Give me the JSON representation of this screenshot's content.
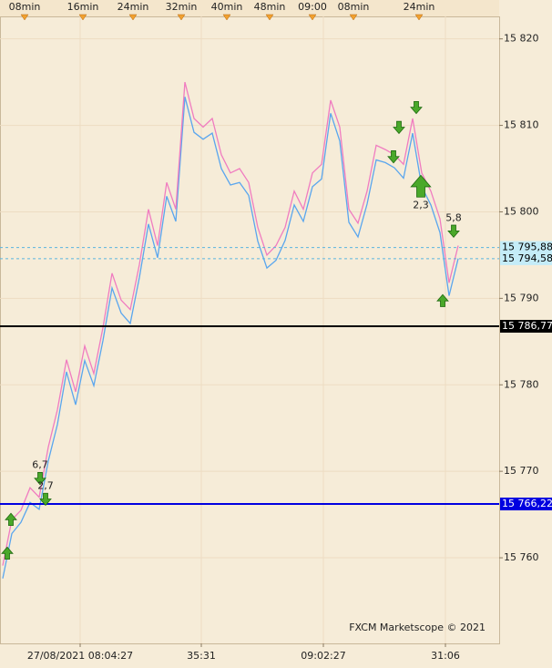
{
  "chart_data": {
    "type": "line",
    "x": [
      0,
      1,
      2,
      3,
      4,
      5,
      6,
      7,
      8,
      9,
      10,
      11,
      12,
      13,
      14,
      15,
      16,
      17,
      18,
      19,
      20,
      21,
      22,
      23,
      24,
      25,
      26,
      27,
      28,
      29,
      30,
      31,
      32,
      33,
      34,
      35,
      36,
      37,
      38,
      39,
      40,
      41,
      42,
      43,
      44,
      45,
      46,
      47,
      48,
      49,
      50
    ],
    "xlim": [
      -0.3,
      54.5
    ],
    "series": [
      {
        "color": "#f07cc0",
        "values": [
          15759.1,
          15764.4,
          15765.5,
          15768.1,
          15767,
          15772.8,
          15777.1,
          15782.9,
          15779.2,
          15784.5,
          15781.3,
          15786.6,
          15792.9,
          15789.8,
          15788.7,
          15793.9,
          15800.3,
          15796.1,
          15803.4,
          15800.3,
          15815,
          15810.8,
          15809.8,
          15810.8,
          15806.6,
          15804.5,
          15805,
          15803.4,
          15798.2,
          15795,
          15796.1,
          15798.2,
          15802.4,
          15800.3,
          15804.5,
          15805.5,
          15812.9,
          15809.8,
          15800.3,
          15798.7,
          15802.4,
          15807.7,
          15807.2,
          15806.6,
          15805.5,
          15810.8,
          15804.5,
          15802.4,
          15799.2,
          15791.8,
          15796.1
        ]
      },
      {
        "color": "#5aa6ee",
        "values": [
          15757.6,
          15762.8,
          15764.1,
          15766.4,
          15765.6,
          15771.2,
          15775.4,
          15781.5,
          15777.7,
          15782.8,
          15779.9,
          15785.1,
          15791.2,
          15788.3,
          15787.1,
          15792.4,
          15798.6,
          15794.7,
          15801.8,
          15798.9,
          15813.3,
          15809.2,
          15808.4,
          15809.1,
          15805,
          15803.1,
          15803.4,
          15801.9,
          15796.6,
          15793.5,
          15794.4,
          15796.7,
          15800.8,
          15798.9,
          15802.9,
          15803.8,
          15811.4,
          15808.2,
          15798.8,
          15797.1,
          15800.9,
          15806,
          15805.7,
          15805.1,
          15803.9,
          15809.1,
          15802.9,
          15800.8,
          15797.6,
          15790.3,
          15794.6
        ]
      }
    ],
    "ylim": [
      15750.1,
      15822.6
    ],
    "yticks": [
      {
        "value": 15760,
        "label": "15 760"
      },
      {
        "value": 15770,
        "label": "15 770"
      },
      {
        "value": 15780,
        "label": "15 780"
      },
      {
        "value": 15790,
        "label": "15 790"
      },
      {
        "value": 15800,
        "label": "15 800"
      },
      {
        "value": 15810,
        "label": "15 810"
      },
      {
        "value": 15820,
        "label": "15 820"
      }
    ],
    "top_ticks": [
      {
        "value": 2.4,
        "label": "08min"
      },
      {
        "value": 8.8,
        "label": "16min"
      },
      {
        "value": 14.3,
        "label": "24min"
      },
      {
        "value": 19.6,
        "label": "32min"
      },
      {
        "value": 24.6,
        "label": "40min"
      },
      {
        "value": 29.3,
        "label": "48min"
      },
      {
        "value": 34,
        "label": "09:00"
      },
      {
        "value": 38.5,
        "label": "08min"
      },
      {
        "value": 45.7,
        "label": "24min"
      }
    ],
    "xticks": [
      {
        "value": 8.5,
        "label": "27/08/2021 08:04:27"
      },
      {
        "value": 21.8,
        "label": "35:31"
      },
      {
        "value": 35.2,
        "label": "09:02:27"
      },
      {
        "value": 48.6,
        "label": "31:06"
      }
    ],
    "hlines": [
      {
        "value": 15795.88,
        "label": "15 795,88",
        "color": "#5ab4e0",
        "style": "dashed",
        "label_bg": "#c4ecf8",
        "label_color": "#000000"
      },
      {
        "value": 15794.58,
        "label": "15 794,58",
        "color": "#5ab4e0",
        "style": "dashed",
        "label_bg": "#c4ecf8",
        "label_color": "#000000"
      },
      {
        "value": 15786.77,
        "label": "15 786,77",
        "color": "#000000",
        "style": "solid",
        "label_bg": "#000000",
        "label_color": "#ffffff"
      },
      {
        "value": 15766.22,
        "label": "15 766,22",
        "color": "#0000e0",
        "style": "solid",
        "label_bg": "#0000e0",
        "label_color": "#ffffff"
      }
    ],
    "signals": [
      {
        "x": 0.5,
        "y": 15760.5,
        "direction": "up"
      },
      {
        "x": 0.9,
        "y": 15764.4,
        "direction": "up"
      },
      {
        "x": 4.1,
        "y": 15769.2,
        "direction": "down",
        "label": "6,7"
      },
      {
        "x": 4.7,
        "y": 15766.8,
        "direction": "down",
        "label": "2,7"
      },
      {
        "x": 42.9,
        "y": 15806.4,
        "direction": "down"
      },
      {
        "x": 43.5,
        "y": 15809.8,
        "direction": "down"
      },
      {
        "x": 45.4,
        "y": 15812.1,
        "direction": "down"
      },
      {
        "x": 45.9,
        "y": 15802.9,
        "direction": "up",
        "size": "large",
        "label": "2,3"
      },
      {
        "x": 48.3,
        "y": 15789.7,
        "direction": "up"
      },
      {
        "x": 49.5,
        "y": 15797.8,
        "direction": "down",
        "label": "5,8"
      }
    ],
    "grid": true,
    "watermark": "FXCM Marketscope © 2021"
  }
}
